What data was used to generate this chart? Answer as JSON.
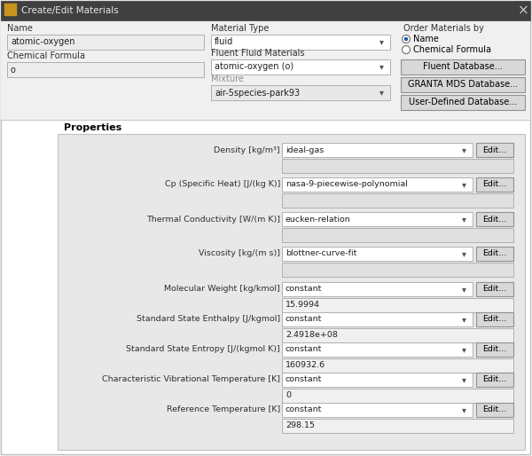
{
  "title": "Create/Edit Materials",
  "bg_color": "#f0f0f0",
  "name_label": "Name",
  "name_value": "atomic-oxygen",
  "chem_label": "Chemical Formula",
  "chem_value": "o",
  "mat_type_label": "Material Type",
  "mat_type_value": "fluid",
  "fluid_mat_label": "Fluent Fluid Materials",
  "fluid_mat_value": "atomic-oxygen (o)",
  "mixture_label": "Mixture",
  "mixture_value": "air-5species-park93",
  "order_label": "Order Materials by",
  "radio1": "Name",
  "radio2": "Chemical Formula",
  "btn1": "Fluent Database...",
  "btn2": "GRANTA MDS Database...",
  "btn3": "User-Defined Database...",
  "properties_label": "Properties",
  "properties": [
    {
      "label": "Density [kg/m³]",
      "method": "ideal-gas",
      "value": null
    },
    {
      "label": "Cp (Specific Heat) [J/(kg K)]",
      "method": "nasa-9-piecewise-polynomial",
      "value": null
    },
    {
      "label": "Thermal Conductivity [W/(m K)]",
      "method": "eucken-relation",
      "value": null
    },
    {
      "label": "Viscosity [kg/(m s)]",
      "method": "blottner-curve-fit",
      "value": null
    },
    {
      "label": "Molecular Weight [kg/kmol]",
      "method": "constant",
      "value": "15.9994"
    },
    {
      "label": "Standard State Enthalpy [J/kgmol]",
      "method": "constant",
      "value": "2.4918e+08"
    },
    {
      "label": "Standard State Entropy [J/(kgmol K)]",
      "method": "constant",
      "value": "160932.6"
    },
    {
      "label": "Characteristic Vibrational Temperature [K]",
      "method": "constant",
      "value": "0"
    },
    {
      "label": "Reference Temperature [K]",
      "method": "constant",
      "value": "298.15"
    }
  ]
}
